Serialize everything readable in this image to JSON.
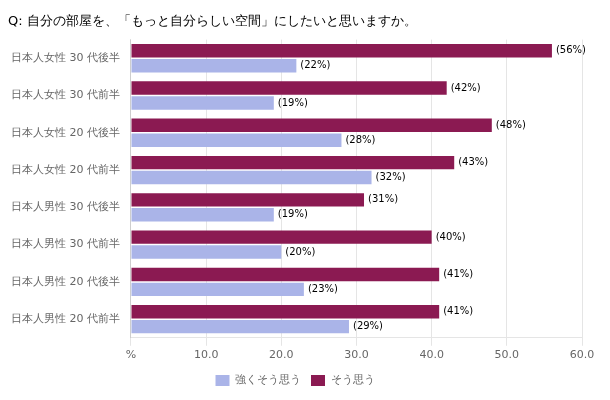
{
  "chart_data": {
    "type": "bar",
    "orientation": "horizontal",
    "title": "Q: 自分の部屋を、「もっと自分らしい空間」にしたいと思いますか。",
    "categories": [
      "日本人女性 30 代後半",
      "日本人女性 30 代前半",
      "日本人女性 20 代後半",
      "日本人女性 20 代前半",
      "日本人男性 30 代後半",
      "日本人男性 30 代前半",
      "日本人男性 20 代後半",
      "日本人男性 20 代前半"
    ],
    "series": [
      {
        "name": "強くそう思う",
        "color": "#aab4e8",
        "values": [
          22,
          19,
          28,
          32,
          19,
          20,
          23,
          29
        ],
        "value_labels": [
          "(22%)",
          "(19%)",
          "(28%)",
          "(32%)",
          "(19%)",
          "(20%)",
          "(23%)",
          "(29%)"
        ]
      },
      {
        "name": "そう思う",
        "color": "#8b1a52",
        "values": [
          56,
          42,
          48,
          43,
          31,
          40,
          41,
          41
        ],
        "value_labels": [
          "(56%)",
          "(42%)",
          "(48%)",
          "(43%)",
          "(31%)",
          "(40%)",
          "(41%)",
          "(41%)"
        ]
      }
    ],
    "xlim": [
      0,
      60
    ],
    "xticks": [
      {
        "value": 0,
        "label": "%"
      },
      {
        "value": 10,
        "label": "10.0"
      },
      {
        "value": 20,
        "label": "20.0"
      },
      {
        "value": 30,
        "label": "30.0"
      },
      {
        "value": 40,
        "label": "40.0"
      },
      {
        "value": 50,
        "label": "50.0"
      },
      {
        "value": 60,
        "label": "60.0"
      }
    ],
    "grid": true,
    "legend": "bottom",
    "data_labels": true
  }
}
